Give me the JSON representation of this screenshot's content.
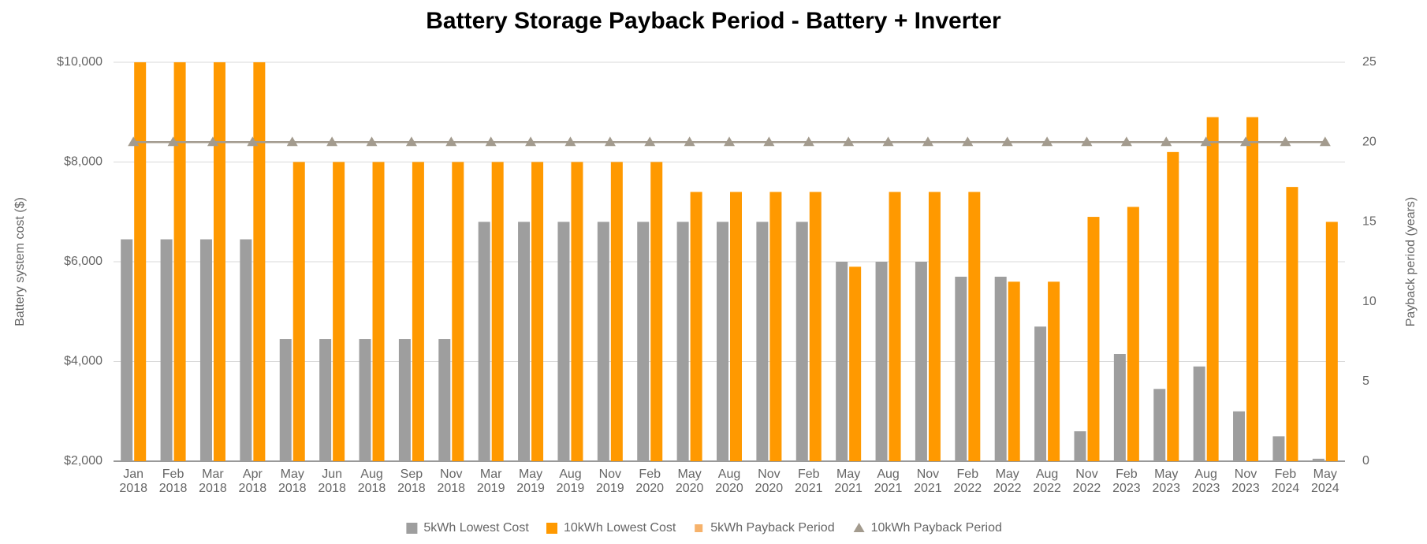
{
  "chart_data": {
    "type": "bar",
    "title": "Battery Storage Payback Period - Battery + Inverter",
    "y_label": "Battery system cost ($)",
    "y2_label": "Payback period (years)",
    "categories": [
      "Jan 2018",
      "Feb 2018",
      "Mar 2018",
      "Apr 2018",
      "May 2018",
      "Jun 2018",
      "Aug 2018",
      "Sep 2018",
      "Nov 2018",
      "Mar 2019",
      "May 2019",
      "Aug 2019",
      "Nov 2019",
      "Feb 2020",
      "May 2020",
      "Aug 2020",
      "Nov 2020",
      "Feb 2021",
      "May 2021",
      "Aug 2021",
      "Nov 2021",
      "Feb 2022",
      "May 2022",
      "Aug 2022",
      "Nov 2022",
      "Feb 2023",
      "May 2023",
      "Aug 2023",
      "Nov 2023",
      "Feb 2024",
      "May 2024"
    ],
    "series": [
      {
        "name": "5kWh Lowest Cost",
        "type": "bar",
        "color": "#9e9e9e",
        "values": [
          6450,
          6450,
          6450,
          6450,
          4450,
          4450,
          4450,
          4450,
          4450,
          6800,
          6800,
          6800,
          6800,
          6800,
          6800,
          6800,
          6800,
          6800,
          6000,
          6000,
          6000,
          5700,
          5700,
          4700,
          2600,
          4150,
          3450,
          3900,
          3000,
          2500,
          2050
        ]
      },
      {
        "name": "10kWh Lowest Cost",
        "type": "bar",
        "color": "#ff9900",
        "values": [
          10000,
          10000,
          10000,
          10000,
          8000,
          8000,
          8000,
          8000,
          8000,
          8000,
          8000,
          8000,
          8000,
          8000,
          7400,
          7400,
          7400,
          7400,
          5900,
          7400,
          7400,
          7400,
          5600,
          5600,
          6900,
          7100,
          8200,
          8900,
          8900,
          7500,
          6800
        ]
      },
      {
        "name": "5kWh Payback Period",
        "type": "line",
        "axis": "y2",
        "color": "#f6b26b",
        "marker": "none",
        "values": [
          20,
          20,
          20,
          20,
          20,
          20,
          20,
          20,
          20,
          20,
          20,
          20,
          20,
          20,
          20,
          20,
          20,
          20,
          20,
          20,
          20,
          20,
          20,
          20,
          20,
          20,
          20,
          20,
          20,
          20,
          20
        ]
      },
      {
        "name": "10kWh Payback Period",
        "type": "line",
        "axis": "y2",
        "color": "#a39b8e",
        "marker": "triangle",
        "values": [
          20,
          20,
          20,
          20,
          20,
          20,
          20,
          20,
          20,
          20,
          20,
          20,
          20,
          20,
          20,
          20,
          20,
          20,
          20,
          20,
          20,
          20,
          20,
          20,
          20,
          20,
          20,
          20,
          20,
          20,
          20
        ]
      }
    ],
    "ylim": [
      2000,
      10000
    ],
    "yticks": [
      {
        "value": 2000,
        "label": "$2,000"
      },
      {
        "value": 4000,
        "label": "$4,000"
      },
      {
        "value": 6000,
        "label": "$6,000"
      },
      {
        "value": 8000,
        "label": "$8,000"
      },
      {
        "value": 10000,
        "label": "$10,000"
      }
    ],
    "y2lim": [
      0,
      25
    ],
    "y2ticks": [
      0,
      5,
      10,
      15,
      20,
      25
    ],
    "grid": true,
    "legend": "bottom"
  }
}
